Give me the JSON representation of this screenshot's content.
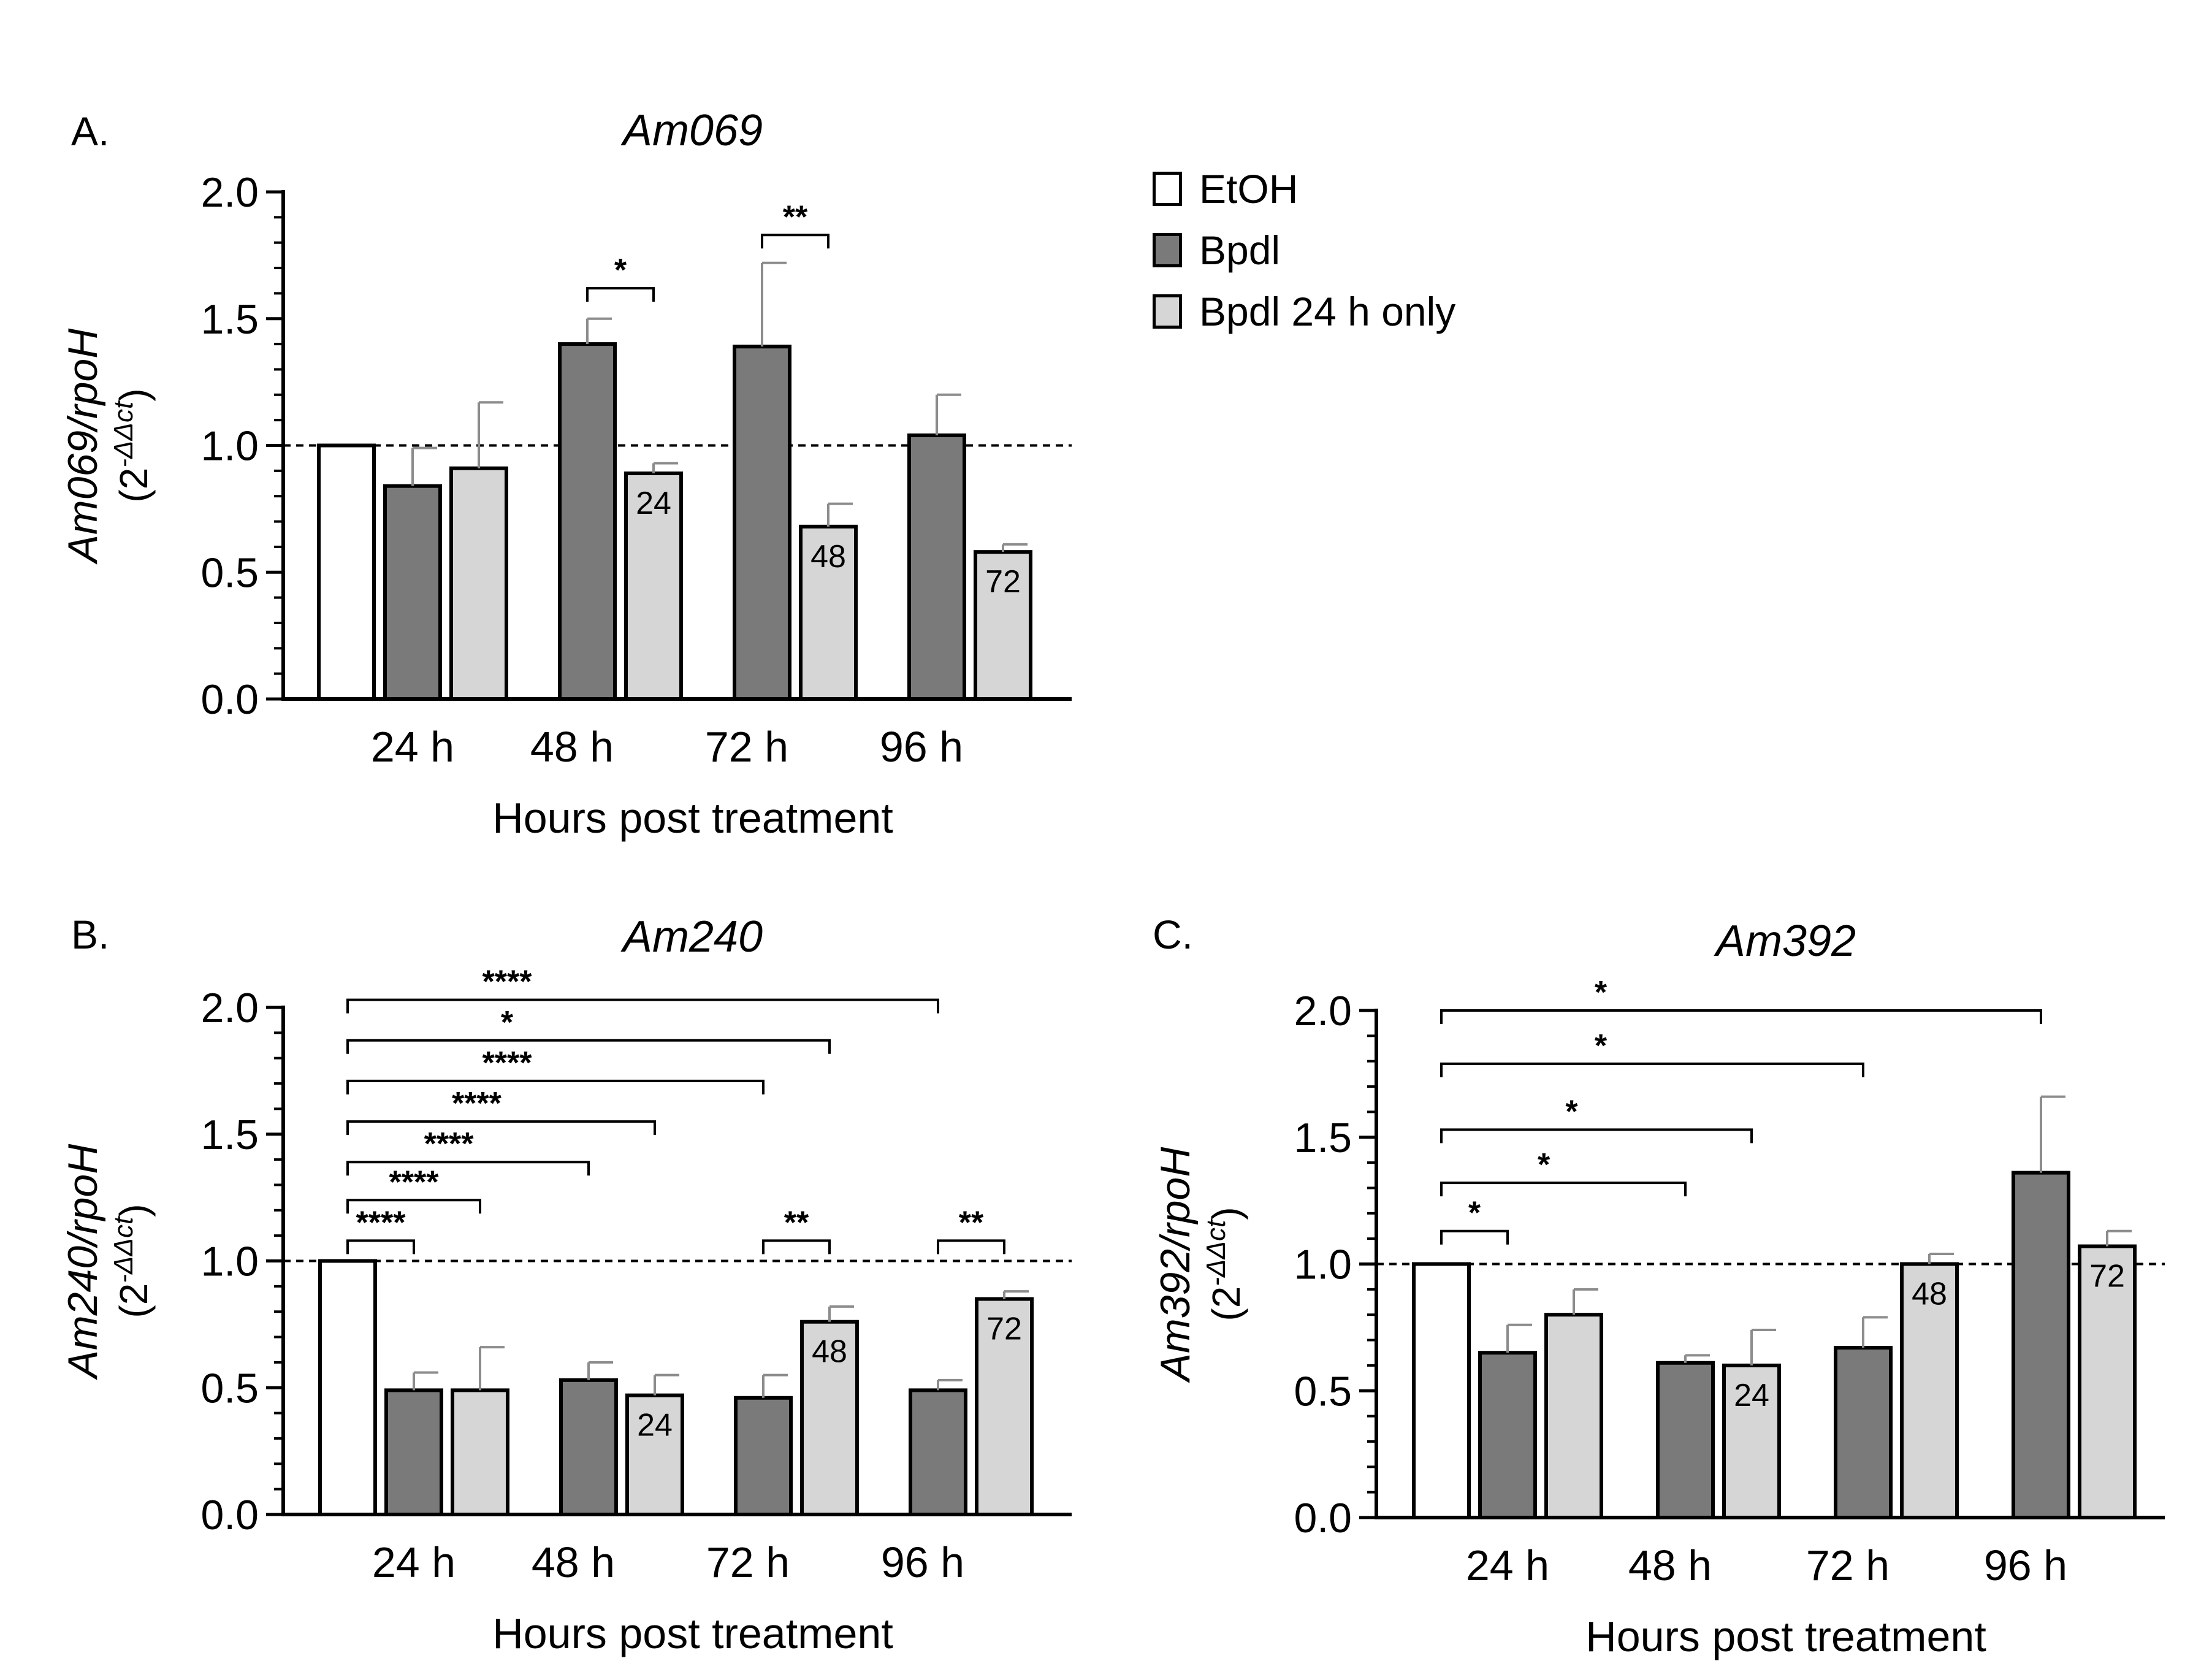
{
  "colors": {
    "etoh": "#ffffff",
    "bpdl": "#7a7a7a",
    "bpdl24": "#d6d6d6",
    "axis": "#000000",
    "error": "#8c8c8c"
  },
  "legend": [
    {
      "key": "etoh",
      "label": "EtOH"
    },
    {
      "key": "bpdl",
      "label": "Bpdl"
    },
    {
      "key": "bpdl24",
      "label": "Bpdl 24 h only"
    }
  ],
  "panel_labels": [
    "A.",
    "B.",
    "C."
  ],
  "chart_data": [
    {
      "id": "A",
      "type": "bar",
      "title": "Am069",
      "ylabel_top": "Am069/rpoH",
      "ylabel_bottom": "(2-ΔΔct)",
      "ylabel_base": "(2",
      "ylabel_sup": "-ΔΔct",
      "ylabel_close": ")",
      "xlabel": "Hours post treatment",
      "ylim": [
        0,
        2.0
      ],
      "yticks": [
        "0.0",
        "0.5",
        "1.0",
        "1.5",
        "2.0"
      ],
      "reference_line": 1.0,
      "groups": [
        {
          "category": "24 h",
          "bars": [
            {
              "series": "etoh",
              "value": 1.0,
              "error": 0,
              "label": ""
            },
            {
              "series": "bpdl",
              "value": 0.84,
              "error": 0.15,
              "label": ""
            },
            {
              "series": "bpdl24",
              "value": 0.91,
              "error": 0.26,
              "label": ""
            }
          ]
        },
        {
          "category": "48 h",
          "bars": [
            {
              "series": "bpdl",
              "value": 1.4,
              "error": 0.1,
              "label": ""
            },
            {
              "series": "bpdl24",
              "value": 0.89,
              "error": 0.04,
              "label": "24"
            }
          ]
        },
        {
          "category": "72 h",
          "bars": [
            {
              "series": "bpdl",
              "value": 1.39,
              "error": 0.33,
              "label": ""
            },
            {
              "series": "bpdl24",
              "value": 0.68,
              "error": 0.09,
              "label": "48"
            }
          ]
        },
        {
          "category": "96 h",
          "bars": [
            {
              "series": "bpdl",
              "value": 1.04,
              "error": 0.16,
              "label": ""
            },
            {
              "series": "bpdl24",
              "value": 0.58,
              "error": 0.03,
              "label": "72"
            }
          ]
        }
      ],
      "significance": [
        {
          "from": [
            1,
            0
          ],
          "to": [
            1,
            1
          ],
          "y": 1.62,
          "label": "*"
        },
        {
          "from": [
            2,
            0
          ],
          "to": [
            2,
            1
          ],
          "y": 1.83,
          "label": "**"
        }
      ]
    },
    {
      "id": "B",
      "type": "bar",
      "title": "Am240",
      "ylabel_top": "Am240/rpoH",
      "ylabel_bottom": "(2-ΔΔct)",
      "ylabel_base": "(2",
      "ylabel_sup": "-ΔΔct",
      "ylabel_close": ")",
      "xlabel": "Hours post treatment",
      "ylim": [
        0,
        2.0
      ],
      "yticks": [
        "0.0",
        "0.5",
        "1.0",
        "1.5",
        "2.0"
      ],
      "reference_line": 1.0,
      "groups": [
        {
          "category": "24 h",
          "bars": [
            {
              "series": "etoh",
              "value": 1.0,
              "error": 0,
              "label": ""
            },
            {
              "series": "bpdl",
              "value": 0.49,
              "error": 0.07,
              "label": ""
            },
            {
              "series": "bpdl24",
              "value": 0.49,
              "error": 0.17,
              "label": ""
            }
          ]
        },
        {
          "category": "48 h",
          "bars": [
            {
              "series": "bpdl",
              "value": 0.53,
              "error": 0.07,
              "label": ""
            },
            {
              "series": "bpdl24",
              "value": 0.47,
              "error": 0.08,
              "label": "24"
            }
          ]
        },
        {
          "category": "72 h",
          "bars": [
            {
              "series": "bpdl",
              "value": 0.46,
              "error": 0.09,
              "label": ""
            },
            {
              "series": "bpdl24",
              "value": 0.76,
              "error": 0.06,
              "label": "48"
            }
          ]
        },
        {
          "category": "96 h",
          "bars": [
            {
              "series": "bpdl",
              "value": 0.49,
              "error": 0.04,
              "label": ""
            },
            {
              "series": "bpdl24",
              "value": 0.85,
              "error": 0.03,
              "label": "72"
            }
          ]
        }
      ],
      "significance": [
        {
          "from": [
            0,
            0
          ],
          "to": [
            3,
            0
          ],
          "y": 2.03,
          "label": "****"
        },
        {
          "from": [
            0,
            0
          ],
          "to": [
            2,
            1
          ],
          "y": 1.87,
          "label": "*"
        },
        {
          "from": [
            0,
            0
          ],
          "to": [
            2,
            0
          ],
          "y": 1.71,
          "label": "****"
        },
        {
          "from": [
            0,
            0
          ],
          "to": [
            1,
            1
          ],
          "y": 1.55,
          "label": "****"
        },
        {
          "from": [
            0,
            0
          ],
          "to": [
            1,
            0
          ],
          "y": 1.39,
          "label": "****"
        },
        {
          "from": [
            0,
            0
          ],
          "to": [
            0,
            2
          ],
          "y": 1.24,
          "label": "****"
        },
        {
          "from": [
            0,
            0
          ],
          "to": [
            0,
            1
          ],
          "y": 1.08,
          "label": "****"
        },
        {
          "from": [
            2,
            0
          ],
          "to": [
            2,
            1
          ],
          "y": 1.08,
          "label": "**"
        },
        {
          "from": [
            3,
            0
          ],
          "to": [
            3,
            1
          ],
          "y": 1.08,
          "label": "**"
        }
      ]
    },
    {
      "id": "C",
      "type": "bar",
      "title": "Am392",
      "ylabel_top": "Am392/rpoH",
      "ylabel_bottom": "(2-ΔΔct)",
      "ylabel_base": "(2",
      "ylabel_sup": "-ΔΔct",
      "ylabel_close": ")",
      "xlabel": "Hours post treatment",
      "ylim": [
        0,
        2.0
      ],
      "yticks": [
        "0.0",
        "0.5",
        "1.0",
        "1.5",
        "2.0"
      ],
      "reference_line": 1.0,
      "groups": [
        {
          "category": "24 h",
          "bars": [
            {
              "series": "etoh",
              "value": 1.0,
              "error": 0,
              "label": ""
            },
            {
              "series": "bpdl",
              "value": 0.65,
              "error": 0.11,
              "label": ""
            },
            {
              "series": "bpdl24",
              "value": 0.8,
              "error": 0.1,
              "label": ""
            }
          ]
        },
        {
          "category": "48 h",
          "bars": [
            {
              "series": "bpdl",
              "value": 0.61,
              "error": 0.03,
              "label": ""
            },
            {
              "series": "bpdl24",
              "value": 0.6,
              "error": 0.14,
              "label": "24"
            }
          ]
        },
        {
          "category": "72 h",
          "bars": [
            {
              "series": "bpdl",
              "value": 0.67,
              "error": 0.12,
              "label": ""
            },
            {
              "series": "bpdl24",
              "value": 1.0,
              "error": 0.04,
              "label": "48"
            }
          ]
        },
        {
          "category": "96 h",
          "bars": [
            {
              "series": "bpdl",
              "value": 1.36,
              "error": 0.3,
              "label": ""
            },
            {
              "series": "bpdl24",
              "value": 1.07,
              "error": 0.06,
              "label": "72"
            }
          ]
        }
      ],
      "significance": [
        {
          "from": [
            0,
            0
          ],
          "to": [
            3,
            0
          ],
          "y": 2.0,
          "label": "*"
        },
        {
          "from": [
            0,
            0
          ],
          "to": [
            2,
            0
          ],
          "y": 1.79,
          "label": "*"
        },
        {
          "from": [
            0,
            0
          ],
          "to": [
            1,
            1
          ],
          "y": 1.53,
          "label": "*"
        },
        {
          "from": [
            0,
            0
          ],
          "to": [
            1,
            0
          ],
          "y": 1.32,
          "label": "*"
        },
        {
          "from": [
            0,
            0
          ],
          "to": [
            0,
            1
          ],
          "y": 1.13,
          "label": "*"
        }
      ]
    }
  ]
}
